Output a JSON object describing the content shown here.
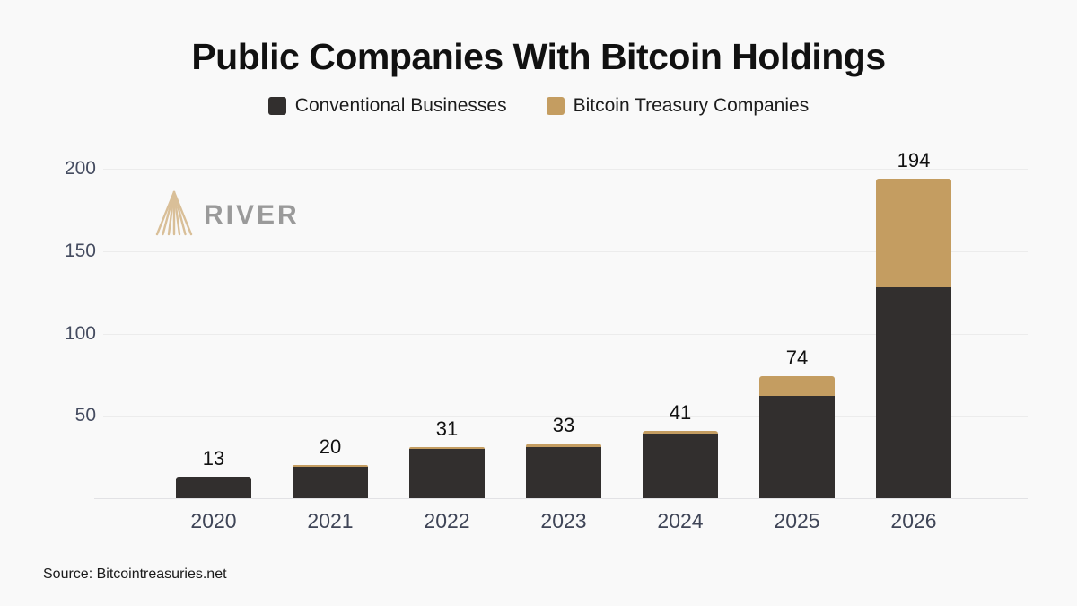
{
  "title": "Public Companies With Bitcoin Holdings",
  "legend": [
    {
      "label": "Conventional Businesses",
      "color": "#322f2e"
    },
    {
      "label": "Bitcoin Treasury Companies",
      "color": "#c49d61"
    }
  ],
  "watermark": {
    "brand": "RIVER",
    "icon": "river-delta-logo",
    "icon_color": "#d9bf98",
    "text_color": "#9a9a9a"
  },
  "source": "Source: Bitcointreasuries.net",
  "colors": {
    "background": "#f9f9f9",
    "conventional_bar": "#322f2e",
    "treasury_bar": "#c49d61",
    "gridline": "#ececec",
    "axis_text": "#454c60",
    "value_text": "#111111"
  },
  "chart_data": {
    "type": "bar",
    "stacked": true,
    "title": "Public Companies With Bitcoin Holdings",
    "categories": [
      "2020",
      "2021",
      "2022",
      "2023",
      "2024",
      "2025",
      "2026"
    ],
    "series": [
      {
        "name": "Conventional Businesses",
        "color": "#322f2e",
        "values": [
          13,
          19,
          30,
          31,
          39,
          62,
          128
        ]
      },
      {
        "name": "Bitcoin Treasury Companies",
        "color": "#c49d61",
        "values": [
          0,
          1,
          1,
          2,
          2,
          12,
          66
        ]
      }
    ],
    "totals": [
      13,
      20,
      31,
      33,
      41,
      74,
      194
    ],
    "xlabel": "",
    "ylabel": "",
    "yticks": [
      50,
      100,
      150,
      200
    ],
    "ylim": [
      0,
      200
    ],
    "grid": true,
    "legend_position": "top",
    "data_labels": "total-above-bar"
  }
}
